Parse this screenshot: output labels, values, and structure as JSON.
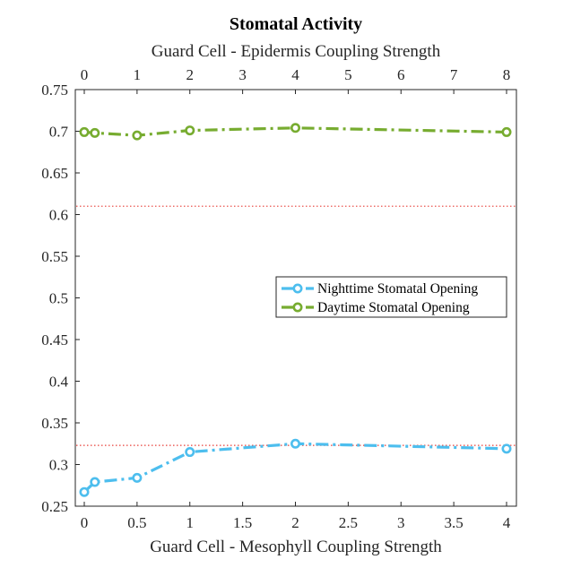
{
  "chart_data": {
    "type": "line",
    "title": "Stomatal Activity",
    "xlabel": "Guard Cell - Mesophyll Coupling Strength",
    "x2label": "Guard Cell - Epidermis Coupling Strength",
    "ylabel": "",
    "xlim": [
      0,
      4
    ],
    "x2lim": [
      0,
      8
    ],
    "ylim": [
      0.25,
      0.75
    ],
    "xticks": [
      "0",
      "0.5",
      "1",
      "1.5",
      "2",
      "2.5",
      "3",
      "3.5",
      "4"
    ],
    "x2ticks": [
      "0",
      "1",
      "2",
      "3",
      "4",
      "5",
      "6",
      "7",
      "8"
    ],
    "yticks": [
      "0.25",
      "0.3",
      "0.35",
      "0.4",
      "0.45",
      "0.5",
      "0.55",
      "0.6",
      "0.65",
      "0.7",
      "0.75"
    ],
    "grid": false,
    "legend_position": "right",
    "reference_lines": [
      {
        "y": 0.61,
        "color": "#e8403a",
        "style": "dotted"
      },
      {
        "y": 0.323,
        "color": "#e8403a",
        "style": "dotted"
      }
    ],
    "series": [
      {
        "name": "Nighttime Stomatal Opening",
        "color": "#4dbeee",
        "x": [
          0,
          0.1,
          0.5,
          1,
          2,
          4
        ],
        "values": [
          0.267,
          0.279,
          0.284,
          0.315,
          0.325,
          0.319
        ]
      },
      {
        "name": "Daytime Stomatal Opening",
        "color": "#77ac30",
        "x": [
          0,
          0.1,
          0.5,
          1,
          2,
          4
        ],
        "values": [
          0.699,
          0.698,
          0.695,
          0.701,
          0.704,
          0.699
        ]
      }
    ]
  }
}
